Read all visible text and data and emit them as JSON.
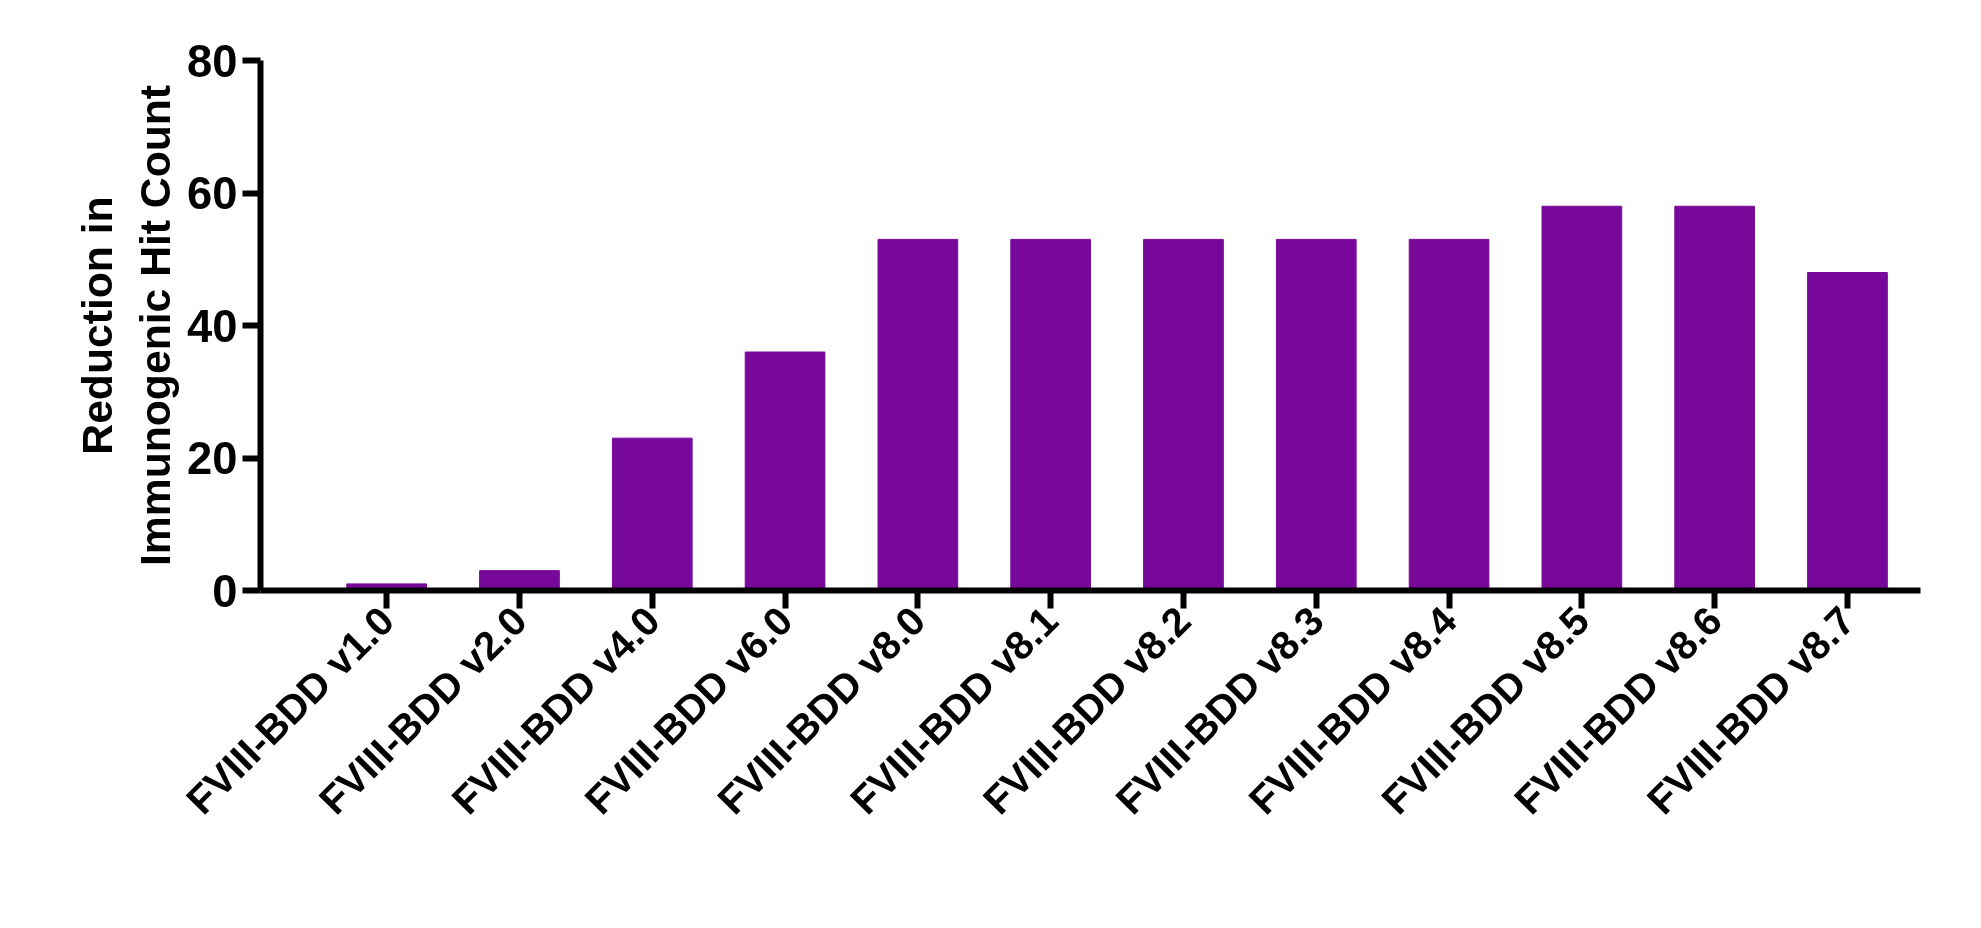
{
  "chart_data": {
    "type": "bar",
    "ylabel": "Reduction in\nImmunogenic Hit Count",
    "categories": [
      "FVIII-BDD v1.0",
      "FVIII-BDD v2.0",
      "FVIII-BDD v4.0",
      "FVIII-BDD v6.0",
      "FVIII-BDD v8.0",
      "FVIII-BDD v8.1",
      "FVIII-BDD v8.2",
      "FVIII-BDD v8.3",
      "FVIII-BDD v8.4",
      "FVIII-BDD v8.5",
      "FVIII-BDD v8.6",
      "FVIII-BDD v8.7"
    ],
    "values": [
      1,
      3,
      23,
      36,
      53,
      53,
      53,
      53,
      53,
      58,
      58,
      48
    ],
    "color": "#77089a",
    "ylim": [
      0,
      80
    ],
    "yticks": [
      0,
      20,
      40,
      60,
      80
    ],
    "grid": false
  }
}
